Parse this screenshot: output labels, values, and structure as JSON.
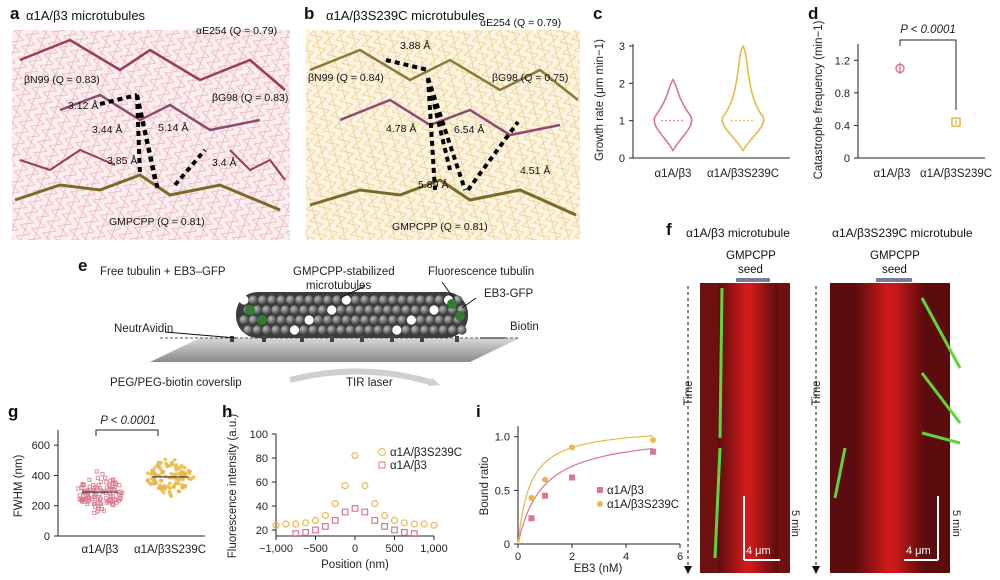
{
  "panels": {
    "a": {
      "label": "a",
      "title": "α1A/β3 microtubules",
      "annotations": [
        "αE254 (Q = 0.79)",
        "βN99 (Q = 0.83)",
        "βG98 (Q = 0.83)",
        "GMPCPP (Q = 0.81)"
      ],
      "distances": [
        "3.12 Å",
        "3.44 Å",
        "5.14 Å",
        "3.85 Å",
        "3.4 Å"
      ]
    },
    "b": {
      "label": "b",
      "title": "α1A/β3S239C microtubules",
      "annotations": [
        "αE254 (Q = 0.79)",
        "βN99 (Q = 0.84)",
        "βG98 (Q = 0.75)",
        "GMPCPP (Q = 0.81)"
      ],
      "distances": [
        "3.88 Å",
        "4.78 Å",
        "6.54 Å",
        "5.89 Å",
        "4.51 Å"
      ]
    },
    "c": {
      "label": "c",
      "ylabel": "Growth rate (μm min−1)",
      "yticks": [
        "0",
        "1",
        "2",
        "3"
      ],
      "categories": [
        "α1A/β3",
        "α1A/β3S239C"
      ]
    },
    "d": {
      "label": "d",
      "ylabel": "Catastrophe frequency (min−1)",
      "yticks": [
        "0",
        "0.4",
        "0.8",
        "1.2"
      ],
      "categories": [
        "α1A/β3",
        "α1A/β3S239C"
      ],
      "pvalue": "P < 0.0001"
    },
    "e": {
      "label": "e",
      "texts": {
        "free": "Free tubulin + EB3–GFP",
        "gmpcpp": "GMPCPP-stabilized",
        "microtubules": "microtubules",
        "fluo": "Fluorescence tubulin",
        "eb3": "EB3-GFP",
        "neutravidin": "NeutrAvidin",
        "biotin": "Biotin",
        "coverslip": "PEG/PEG-biotin coverslip",
        "tir": "TIR laser"
      }
    },
    "f": {
      "label": "f",
      "title1": "α1A/β3 microtubule",
      "title2": "α1A/β3S239C microtubule",
      "seed1": "GMPCPP",
      "seed2": "seed",
      "time": "Time",
      "scale_x": "4 μm",
      "scale_t": "5 min"
    },
    "g": {
      "label": "g",
      "ylabel": "FWHM (nm)",
      "yticks": [
        "0",
        "200",
        "400",
        "600"
      ],
      "categories": [
        "α1A/β3",
        "α1A/β3S239C"
      ],
      "pvalue": "P < 0.0001"
    },
    "h": {
      "label": "h",
      "ylabel": "Fluorescence intensity (a.u.)",
      "xlabel": "Position (nm)",
      "yticks": [
        "20",
        "40",
        "60",
        "80",
        "100"
      ],
      "xticks": [
        "−1,000",
        "−500",
        "0",
        "500",
        "1,000"
      ],
      "legend": [
        "α1A/β3S239C",
        "α1A/β3"
      ]
    },
    "i": {
      "label": "i",
      "ylabel": "Bound ratio",
      "xlabel": "EB3 (nM)",
      "yticks": [
        "0",
        "0.5",
        "1.0"
      ],
      "xticks": [
        "0",
        "2",
        "4",
        "6"
      ],
      "legend": [
        "α1A/β3",
        "α1A/β3S239C"
      ]
    }
  },
  "colors": {
    "wt": "#d9778f",
    "mut": "#e8b94a",
    "ebgreen": "#2e7d32"
  },
  "chart_data": [
    {
      "panel": "c",
      "type": "violin",
      "ylabel": "Growth rate (μm min−1)",
      "ylim": [
        0,
        3
      ],
      "categories": [
        "α1A/β3",
        "α1A/β3S239C"
      ],
      "series": [
        {
          "name": "α1A/β3",
          "median": 1.0,
          "min": 0.2,
          "max": 2.1
        },
        {
          "name": "α1A/β3S239C",
          "median": 1.0,
          "min": 0.2,
          "max": 3.0
        }
      ]
    },
    {
      "panel": "d",
      "type": "scatter",
      "ylabel": "Catastrophe frequency (min−1)",
      "ylim": [
        0,
        1.4
      ],
      "categories": [
        "α1A/β3",
        "α1A/β3S239C"
      ],
      "values": [
        1.1,
        0.44
      ],
      "errors": [
        0.07,
        0.03
      ]
    },
    {
      "panel": "g",
      "type": "scatter",
      "ylabel": "FWHM (nm)",
      "ylim": [
        0,
        700
      ],
      "categories": [
        "α1A/β3",
        "α1A/β3S239C"
      ],
      "series": [
        {
          "name": "α1A/β3",
          "mean": 290,
          "sd": 90,
          "min": 40,
          "max": 520
        },
        {
          "name": "α1A/β3S239C",
          "mean": 390,
          "sd": 85,
          "min": 40,
          "max": 700
        }
      ]
    },
    {
      "panel": "h",
      "type": "scatter",
      "xlabel": "Position (nm)",
      "ylabel": "Fluorescence intensity (a.u.)",
      "xlim": [
        -1000,
        1000
      ],
      "ylim": [
        15,
        100
      ],
      "series": [
        {
          "name": "α1A/β3S239C",
          "x": [
            -1000,
            -875,
            -750,
            -625,
            -500,
            -375,
            -250,
            -125,
            0,
            125,
            250,
            375,
            500,
            625,
            750,
            875,
            1000
          ],
          "y": [
            24,
            25,
            25,
            26,
            28,
            32,
            42,
            57,
            82,
            57,
            42,
            32,
            28,
            26,
            25,
            25,
            24
          ]
        },
        {
          "name": "α1A/β3",
          "x": [
            -750,
            -625,
            -500,
            -375,
            -250,
            -125,
            0,
            125,
            250,
            375,
            500,
            625,
            750
          ],
          "y": [
            17,
            18,
            20,
            23,
            28,
            35,
            38,
            35,
            28,
            23,
            20,
            18,
            17
          ]
        }
      ]
    },
    {
      "panel": "i",
      "type": "scatter",
      "xlabel": "EB3 (nM)",
      "ylabel": "Bound ratio",
      "xlim": [
        0,
        6
      ],
      "ylim": [
        0,
        1.1
      ],
      "series": [
        {
          "name": "α1A/β3",
          "x": [
            0.5,
            1,
            2,
            5
          ],
          "y": [
            0.24,
            0.45,
            0.62,
            0.86
          ]
        },
        {
          "name": "α1A/β3S239C",
          "x": [
            0.5,
            1,
            2,
            5
          ],
          "y": [
            0.43,
            0.6,
            0.9,
            0.97
          ]
        }
      ]
    }
  ]
}
